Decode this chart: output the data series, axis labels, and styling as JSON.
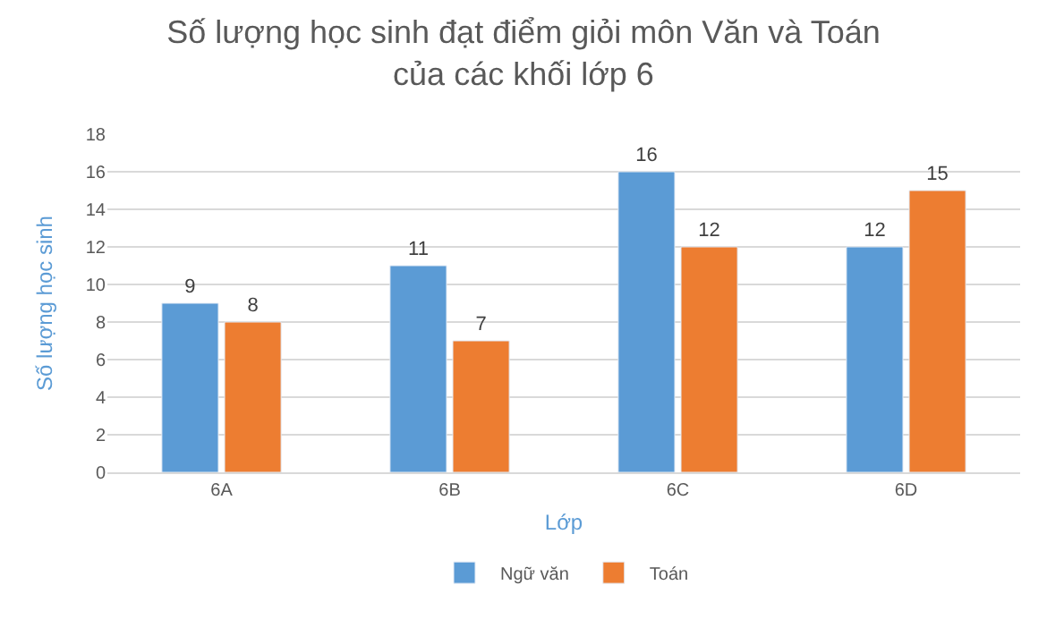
{
  "chart_data": {
    "type": "bar",
    "title": "Số lượng học sinh đạt điểm giỏi môn Văn và Toán\ncủa các khối lớp 6",
    "xlabel": "Lớp",
    "ylabel": "Số lượng học sinh",
    "categories": [
      "6A",
      "6B",
      "6C",
      "6D"
    ],
    "series": [
      {
        "name": "Ngữ văn",
        "color": "#5b9bd5",
        "values": [
          9,
          11,
          16,
          12
        ]
      },
      {
        "name": "Toán",
        "color": "#ed7d31",
        "values": [
          8,
          7,
          12,
          15
        ]
      }
    ],
    "ylim": [
      0,
      18
    ],
    "yticks": [
      0,
      2,
      4,
      6,
      8,
      10,
      12,
      14,
      16,
      18
    ],
    "grid": "y",
    "legend": "bottom",
    "data_labels": true
  }
}
